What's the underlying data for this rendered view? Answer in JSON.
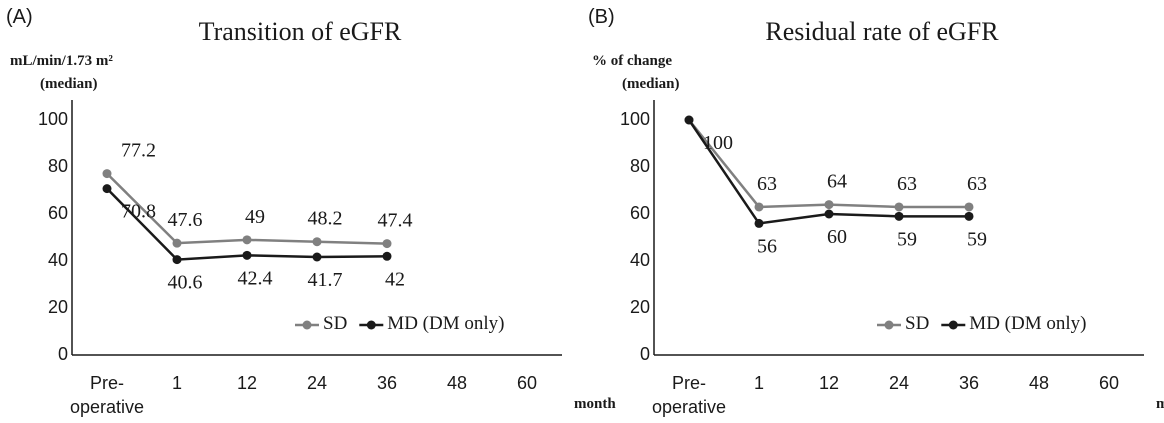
{
  "chart_data": [
    {
      "type": "line",
      "panel": "(A)",
      "title": "Transition of eGFR",
      "ylabel": [
        "mL/min/1.73 m²",
        "(median)"
      ],
      "xlabel": "month",
      "categories": [
        "Pre-\noperative",
        "1",
        "12",
        "24",
        "36",
        "48",
        "60"
      ],
      "series": [
        {
          "name": "SD",
          "color": "#808080",
          "values": [
            77.2,
            47.6,
            49,
            48.2,
            47.4,
            null,
            null
          ]
        },
        {
          "name": "MD (DM only)",
          "color": "#1a1a1a",
          "values": [
            70.8,
            40.6,
            42.4,
            41.7,
            42,
            null,
            null
          ]
        }
      ],
      "ylim": [
        0,
        100
      ],
      "yticks": [
        0,
        20,
        40,
        60,
        80,
        100
      ],
      "grid": false,
      "legend": "lower right"
    },
    {
      "type": "line",
      "panel": "(B)",
      "title": "Residual rate of eGFR",
      "ylabel": [
        "% of change",
        "(median)"
      ],
      "xlabel": "month",
      "categories": [
        "Pre-\noperative",
        "1",
        "12",
        "24",
        "36",
        "48",
        "60"
      ],
      "series": [
        {
          "name": "SD",
          "color": "#808080",
          "values": [
            100,
            63,
            64,
            63,
            63,
            null,
            null
          ],
          "value_labels": [
            null,
            "63",
            "64",
            "63",
            "63",
            null,
            null
          ]
        },
        {
          "name": "MD (DM only)",
          "color": "#1a1a1a",
          "values": [
            100,
            56,
            60,
            59,
            59,
            null,
            null
          ]
        }
      ],
      "ylim": [
        0,
        100
      ],
      "yticks": [
        0,
        20,
        40,
        60,
        80,
        100
      ],
      "grid": false,
      "legend": "lower right"
    }
  ]
}
